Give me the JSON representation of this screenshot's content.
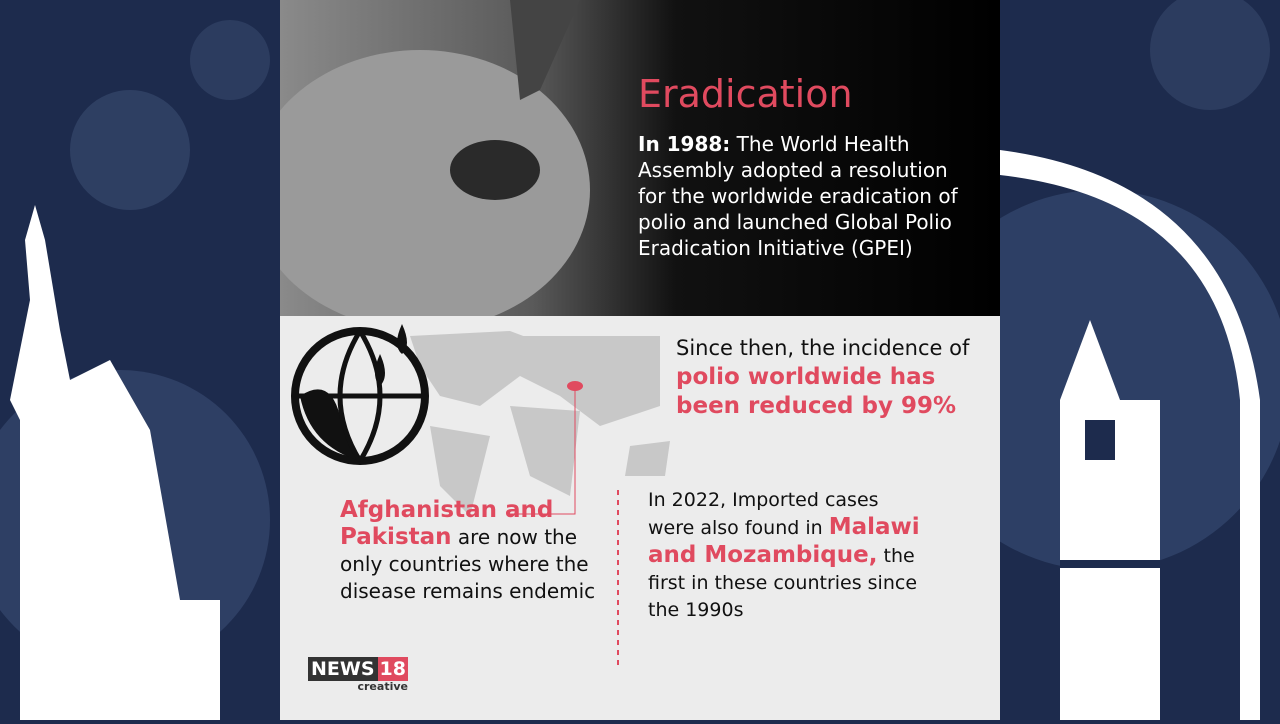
{
  "header": {
    "title": "Eradication",
    "intro_lead": "In 1988:",
    "intro_text": "The World Health Assembly adopted a resolution for the worldwide eradication of polio and launched Global Polio Eradication Initiative (GPEI)"
  },
  "facts": [
    {
      "text_before": "Since then, the incidence of ",
      "highlight": "polio worldwide has been reduced by 99%"
    },
    {
      "highlight": "Afghanistan and Pakistan",
      "text_after": " are now the only countries where the disease remains endemic"
    },
    {
      "text_before": "In 2022, Imported cases were also found in ",
      "highlight": "Malawi and Mozambique,",
      "text_after": " the first in these countries since the 1990s"
    }
  ],
  "logo": {
    "brand": "NEWS",
    "number": "18",
    "sub": "creative"
  }
}
